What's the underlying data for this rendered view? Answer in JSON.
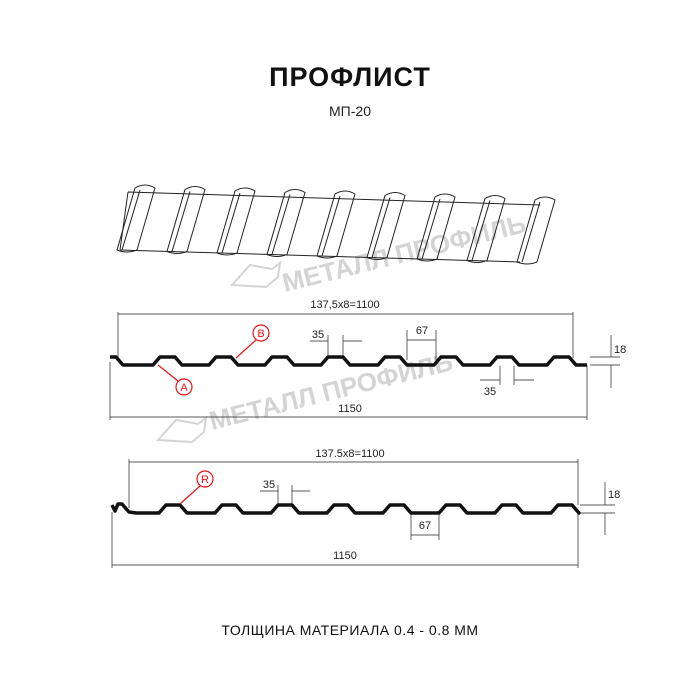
{
  "title": "ПРОФЛИСТ",
  "subtitle": "МП-20",
  "footer": "ТОЛЩИНА МАТЕРИАЛА 0.4 - 0.8 ММ",
  "watermark": "МЕТАЛЛ ПРОФИЛЬ",
  "colors": {
    "profile": "#111111",
    "callout": "#e8141c",
    "watermark": "#d4d4d4"
  },
  "profile1": {
    "dim_pitch": "137,5x8=1100",
    "dim_total": "1150",
    "dim_top": "35",
    "dim_bottom": "35",
    "dim_rib": "67",
    "dim_height": "18",
    "callouts": [
      "B",
      "A"
    ]
  },
  "profile2": {
    "dim_pitch": "137.5x8=1100",
    "dim_total": "1150",
    "dim_top": "35",
    "dim_rib": "67",
    "dim_height": "18",
    "callouts": [
      "R"
    ]
  }
}
